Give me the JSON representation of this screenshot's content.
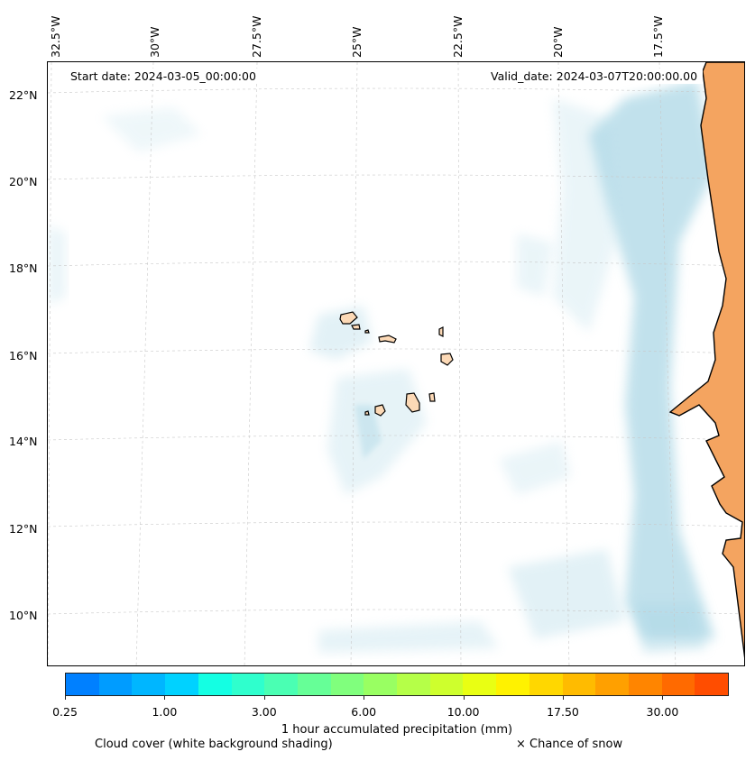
{
  "map": {
    "start_date": "Start date: 2024-03-05_00:00:00",
    "valid_date": "Valid_date: 2024-03-07T20:00:00.00",
    "lon_labels": [
      "32.5°W",
      "30°W",
      "27.5°W",
      "25°W",
      "22.5°W",
      "20°W",
      "17.5°W"
    ],
    "lat_labels": [
      "22°N",
      "20°N",
      "18°N",
      "16°N",
      "14°N",
      "12°N",
      "10°N"
    ],
    "colors": {
      "land": "#f4a460",
      "cloud": "#add8e6",
      "island_fill": "#fcd9b6",
      "coast": "#000000",
      "grid": "#c8c8c8"
    }
  },
  "colorbar": {
    "label": "1 hour accumulated precipitation (mm)",
    "tick_labels": [
      "0.25",
      "1.00",
      "3.00",
      "6.00",
      "10.00",
      "17.50",
      "30.00"
    ],
    "colors": [
      "#0080ff",
      "#009cff",
      "#00b6ff",
      "#00d2ff",
      "#14ffe3",
      "#2fffcd",
      "#4affb3",
      "#66ff97",
      "#80ff7d",
      "#99ff62",
      "#b5ff48",
      "#ceff2d",
      "#e9ff13",
      "#fff200",
      "#ffd700",
      "#ffbb00",
      "#ffa000",
      "#ff8500",
      "#ff6a00",
      "#ff4d00"
    ]
  },
  "legend": {
    "cloud_note": "Cloud cover (white background shading)",
    "snow_note": "× Chance of snow"
  }
}
